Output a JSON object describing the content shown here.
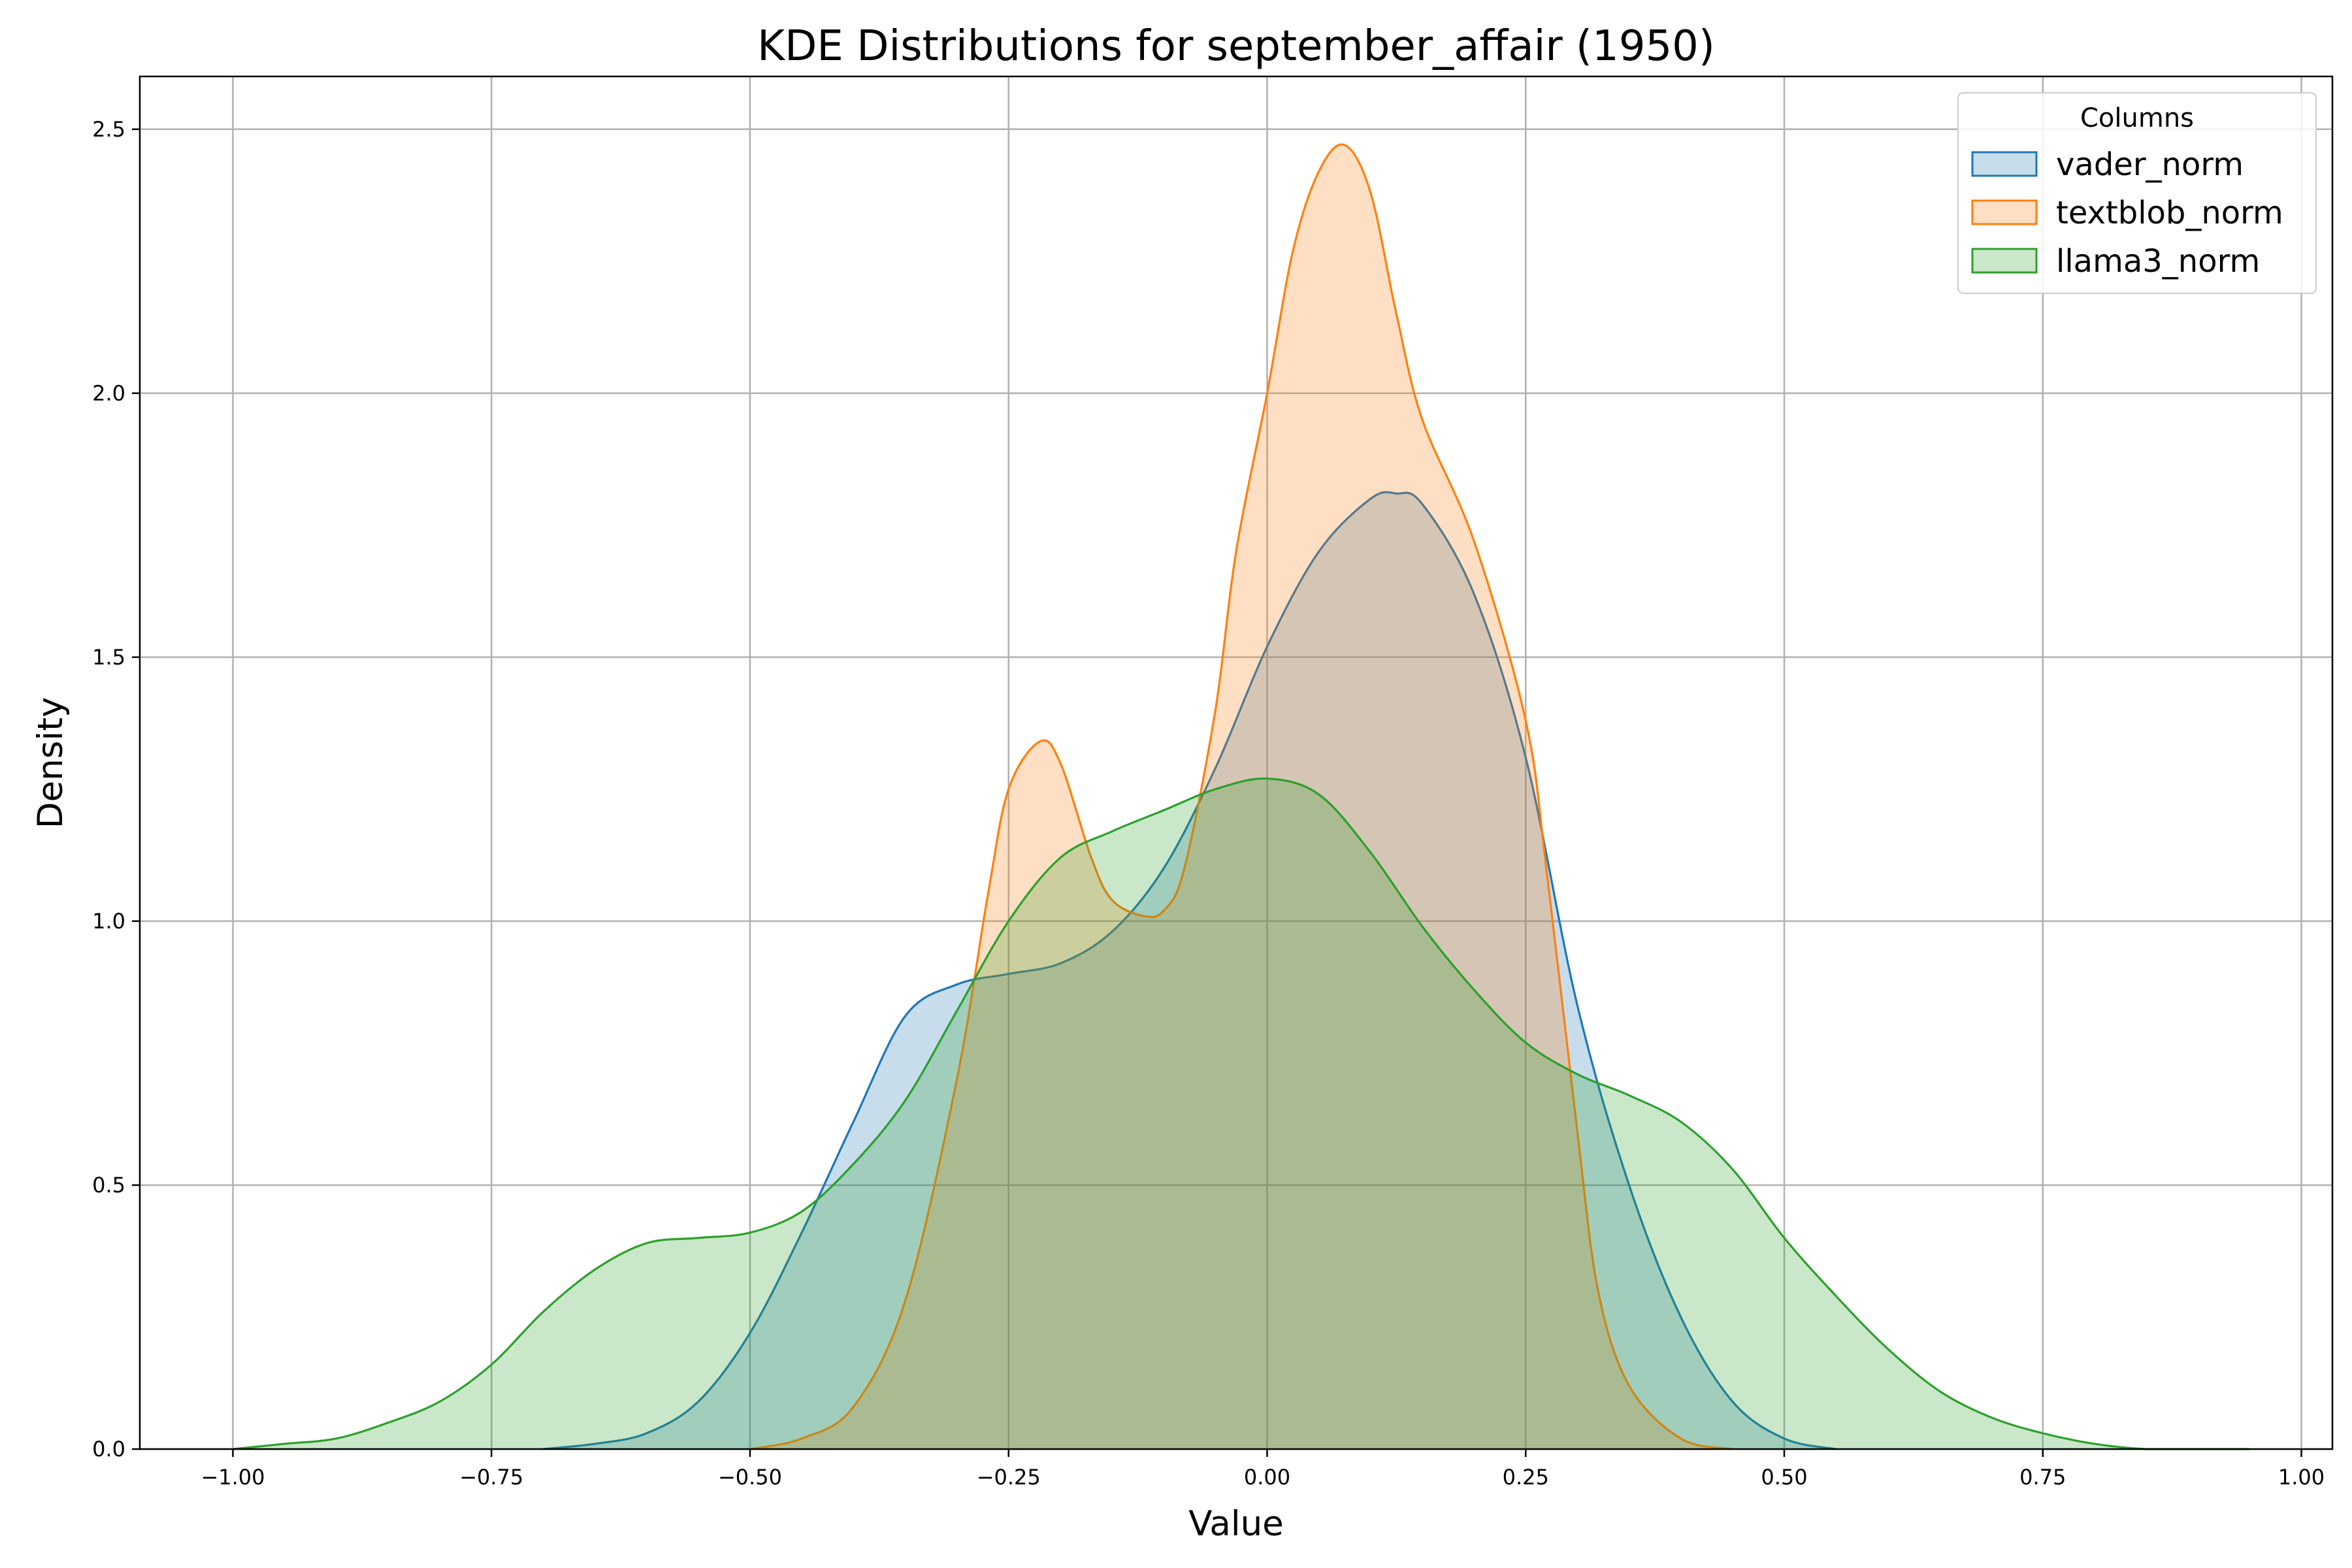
{
  "chart_data": {
    "type": "area",
    "title": "KDE Distributions for september_affair (1950)",
    "xlabel": "Value",
    "ylabel": "Density",
    "xlim": [
      -1.09,
      1.03
    ],
    "ylim": [
      0,
      2.6
    ],
    "xticks": [
      -1.0,
      -0.75,
      -0.5,
      -0.25,
      0.0,
      0.25,
      0.5,
      0.75,
      1.0
    ],
    "xtick_labels": [
      "−1.00",
      "−0.75",
      "−0.50",
      "−0.25",
      "0.00",
      "0.25",
      "0.50",
      "0.75",
      "1.00"
    ],
    "yticks": [
      0.0,
      0.5,
      1.0,
      1.5,
      2.0,
      2.5
    ],
    "ytick_labels": [
      "0.0",
      "0.5",
      "1.0",
      "1.5",
      "2.0",
      "2.5"
    ],
    "grid": true,
    "legend": {
      "title": "Columns",
      "position": "top-right"
    },
    "series": [
      {
        "name": "vader_norm",
        "color": "#1f77b4",
        "x": [
          -0.7,
          -0.65,
          -0.6,
          -0.55,
          -0.5,
          -0.45,
          -0.4,
          -0.35,
          -0.3,
          -0.25,
          -0.2,
          -0.15,
          -0.1,
          -0.05,
          0.0,
          0.05,
          0.1,
          0.125,
          0.15,
          0.2,
          0.25,
          0.3,
          0.35,
          0.4,
          0.45,
          0.5,
          0.55
        ],
        "y": [
          0.0,
          0.01,
          0.03,
          0.09,
          0.22,
          0.41,
          0.62,
          0.82,
          0.88,
          0.9,
          0.92,
          0.98,
          1.1,
          1.29,
          1.52,
          1.7,
          1.8,
          1.81,
          1.79,
          1.62,
          1.31,
          0.84,
          0.5,
          0.25,
          0.09,
          0.02,
          0.0
        ]
      },
      {
        "name": "textblob_norm",
        "color": "#ff7f0e",
        "x": [
          -0.5,
          -0.45,
          -0.4,
          -0.35,
          -0.3,
          -0.27,
          -0.25,
          -0.22,
          -0.2,
          -0.17,
          -0.15,
          -0.12,
          -0.1,
          -0.08,
          -0.05,
          -0.03,
          0.0,
          0.025,
          0.05,
          0.075,
          0.1,
          0.125,
          0.15,
          0.2,
          0.25,
          0.27,
          0.3,
          0.32,
          0.35,
          0.4,
          0.45
        ],
        "y": [
          0.0,
          0.02,
          0.08,
          0.28,
          0.7,
          1.05,
          1.25,
          1.34,
          1.3,
          1.12,
          1.04,
          1.01,
          1.02,
          1.1,
          1.4,
          1.7,
          2.0,
          2.27,
          2.42,
          2.47,
          2.38,
          2.15,
          1.95,
          1.72,
          1.38,
          1.1,
          0.6,
          0.3,
          0.12,
          0.02,
          0.0
        ]
      },
      {
        "name": "llama3_norm",
        "color": "#2ca02c",
        "x": [
          -1.0,
          -0.95,
          -0.9,
          -0.85,
          -0.8,
          -0.75,
          -0.7,
          -0.65,
          -0.6,
          -0.55,
          -0.5,
          -0.45,
          -0.4,
          -0.35,
          -0.3,
          -0.25,
          -0.2,
          -0.15,
          -0.1,
          -0.05,
          0.0,
          0.05,
          0.1,
          0.15,
          0.2,
          0.25,
          0.3,
          0.35,
          0.4,
          0.45,
          0.5,
          0.55,
          0.6,
          0.65,
          0.7,
          0.75,
          0.8,
          0.85,
          0.9,
          0.95
        ],
        "y": [
          0.0,
          0.01,
          0.02,
          0.05,
          0.09,
          0.16,
          0.26,
          0.34,
          0.39,
          0.4,
          0.41,
          0.45,
          0.54,
          0.66,
          0.83,
          1.0,
          1.12,
          1.17,
          1.21,
          1.25,
          1.27,
          1.24,
          1.13,
          0.99,
          0.87,
          0.77,
          0.71,
          0.67,
          0.62,
          0.53,
          0.4,
          0.29,
          0.19,
          0.11,
          0.06,
          0.03,
          0.01,
          0.0,
          0.0,
          0.0
        ]
      }
    ]
  }
}
